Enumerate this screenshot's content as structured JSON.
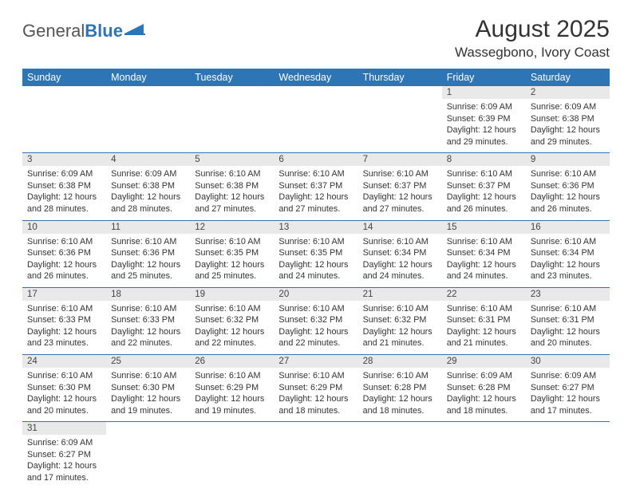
{
  "logo": {
    "general": "General",
    "blue": "Blue"
  },
  "title": "August 2025",
  "location": "Wassegbono, Ivory Coast",
  "colors": {
    "header_bg": "#2e75b6",
    "header_fg": "#ffffff",
    "daynum_bg": "#e9e9e9",
    "rule": "#2e75b6"
  },
  "day_headers": [
    "Sunday",
    "Monday",
    "Tuesday",
    "Wednesday",
    "Thursday",
    "Friday",
    "Saturday"
  ],
  "weeks": [
    [
      null,
      null,
      null,
      null,
      null,
      {
        "n": "1",
        "sr": "Sunrise: 6:09 AM",
        "ss": "Sunset: 6:39 PM",
        "dl": "Daylight: 12 hours and 29 minutes."
      },
      {
        "n": "2",
        "sr": "Sunrise: 6:09 AM",
        "ss": "Sunset: 6:38 PM",
        "dl": "Daylight: 12 hours and 29 minutes."
      }
    ],
    [
      {
        "n": "3",
        "sr": "Sunrise: 6:09 AM",
        "ss": "Sunset: 6:38 PM",
        "dl": "Daylight: 12 hours and 28 minutes."
      },
      {
        "n": "4",
        "sr": "Sunrise: 6:09 AM",
        "ss": "Sunset: 6:38 PM",
        "dl": "Daylight: 12 hours and 28 minutes."
      },
      {
        "n": "5",
        "sr": "Sunrise: 6:10 AM",
        "ss": "Sunset: 6:38 PM",
        "dl": "Daylight: 12 hours and 27 minutes."
      },
      {
        "n": "6",
        "sr": "Sunrise: 6:10 AM",
        "ss": "Sunset: 6:37 PM",
        "dl": "Daylight: 12 hours and 27 minutes."
      },
      {
        "n": "7",
        "sr": "Sunrise: 6:10 AM",
        "ss": "Sunset: 6:37 PM",
        "dl": "Daylight: 12 hours and 27 minutes."
      },
      {
        "n": "8",
        "sr": "Sunrise: 6:10 AM",
        "ss": "Sunset: 6:37 PM",
        "dl": "Daylight: 12 hours and 26 minutes."
      },
      {
        "n": "9",
        "sr": "Sunrise: 6:10 AM",
        "ss": "Sunset: 6:36 PM",
        "dl": "Daylight: 12 hours and 26 minutes."
      }
    ],
    [
      {
        "n": "10",
        "sr": "Sunrise: 6:10 AM",
        "ss": "Sunset: 6:36 PM",
        "dl": "Daylight: 12 hours and 26 minutes."
      },
      {
        "n": "11",
        "sr": "Sunrise: 6:10 AM",
        "ss": "Sunset: 6:36 PM",
        "dl": "Daylight: 12 hours and 25 minutes."
      },
      {
        "n": "12",
        "sr": "Sunrise: 6:10 AM",
        "ss": "Sunset: 6:35 PM",
        "dl": "Daylight: 12 hours and 25 minutes."
      },
      {
        "n": "13",
        "sr": "Sunrise: 6:10 AM",
        "ss": "Sunset: 6:35 PM",
        "dl": "Daylight: 12 hours and 24 minutes."
      },
      {
        "n": "14",
        "sr": "Sunrise: 6:10 AM",
        "ss": "Sunset: 6:34 PM",
        "dl": "Daylight: 12 hours and 24 minutes."
      },
      {
        "n": "15",
        "sr": "Sunrise: 6:10 AM",
        "ss": "Sunset: 6:34 PM",
        "dl": "Daylight: 12 hours and 24 minutes."
      },
      {
        "n": "16",
        "sr": "Sunrise: 6:10 AM",
        "ss": "Sunset: 6:34 PM",
        "dl": "Daylight: 12 hours and 23 minutes."
      }
    ],
    [
      {
        "n": "17",
        "sr": "Sunrise: 6:10 AM",
        "ss": "Sunset: 6:33 PM",
        "dl": "Daylight: 12 hours and 23 minutes."
      },
      {
        "n": "18",
        "sr": "Sunrise: 6:10 AM",
        "ss": "Sunset: 6:33 PM",
        "dl": "Daylight: 12 hours and 22 minutes."
      },
      {
        "n": "19",
        "sr": "Sunrise: 6:10 AM",
        "ss": "Sunset: 6:32 PM",
        "dl": "Daylight: 12 hours and 22 minutes."
      },
      {
        "n": "20",
        "sr": "Sunrise: 6:10 AM",
        "ss": "Sunset: 6:32 PM",
        "dl": "Daylight: 12 hours and 22 minutes."
      },
      {
        "n": "21",
        "sr": "Sunrise: 6:10 AM",
        "ss": "Sunset: 6:32 PM",
        "dl": "Daylight: 12 hours and 21 minutes."
      },
      {
        "n": "22",
        "sr": "Sunrise: 6:10 AM",
        "ss": "Sunset: 6:31 PM",
        "dl": "Daylight: 12 hours and 21 minutes."
      },
      {
        "n": "23",
        "sr": "Sunrise: 6:10 AM",
        "ss": "Sunset: 6:31 PM",
        "dl": "Daylight: 12 hours and 20 minutes."
      }
    ],
    [
      {
        "n": "24",
        "sr": "Sunrise: 6:10 AM",
        "ss": "Sunset: 6:30 PM",
        "dl": "Daylight: 12 hours and 20 minutes."
      },
      {
        "n": "25",
        "sr": "Sunrise: 6:10 AM",
        "ss": "Sunset: 6:30 PM",
        "dl": "Daylight: 12 hours and 19 minutes."
      },
      {
        "n": "26",
        "sr": "Sunrise: 6:10 AM",
        "ss": "Sunset: 6:29 PM",
        "dl": "Daylight: 12 hours and 19 minutes."
      },
      {
        "n": "27",
        "sr": "Sunrise: 6:10 AM",
        "ss": "Sunset: 6:29 PM",
        "dl": "Daylight: 12 hours and 18 minutes."
      },
      {
        "n": "28",
        "sr": "Sunrise: 6:10 AM",
        "ss": "Sunset: 6:28 PM",
        "dl": "Daylight: 12 hours and 18 minutes."
      },
      {
        "n": "29",
        "sr": "Sunrise: 6:09 AM",
        "ss": "Sunset: 6:28 PM",
        "dl": "Daylight: 12 hours and 18 minutes."
      },
      {
        "n": "30",
        "sr": "Sunrise: 6:09 AM",
        "ss": "Sunset: 6:27 PM",
        "dl": "Daylight: 12 hours and 17 minutes."
      }
    ],
    [
      {
        "n": "31",
        "sr": "Sunrise: 6:09 AM",
        "ss": "Sunset: 6:27 PM",
        "dl": "Daylight: 12 hours and 17 minutes."
      },
      null,
      null,
      null,
      null,
      null,
      null
    ]
  ]
}
